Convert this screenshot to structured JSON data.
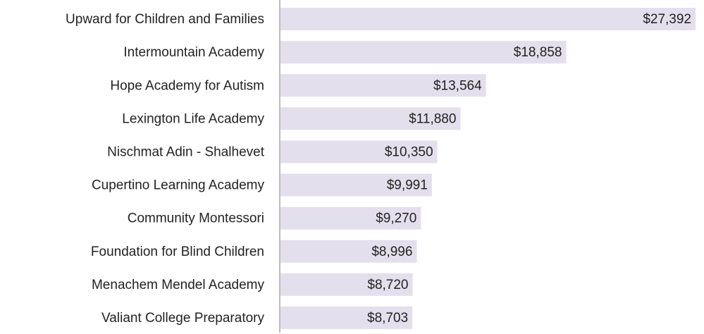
{
  "chart_data": {
    "type": "bar",
    "orientation": "horizontal",
    "categories": [
      "Upward for Children and Families",
      "Intermountain Academy",
      "Hope Academy for Autism",
      "Lexington Life Academy",
      "Nischmat Adin - Shalhevet",
      "Cupertino Learning Academy",
      "Community Montessori",
      "Foundation for Blind Children",
      "Menachem Mendel Academy",
      "Valiant College Preparatory"
    ],
    "values": [
      27392,
      18858,
      13564,
      11880,
      10350,
      9991,
      9270,
      8996,
      8720,
      8703
    ],
    "value_labels": [
      "$27,392",
      "$18,858",
      "$13,564",
      "$11,880",
      "$10,350",
      "$9,991",
      "$9,270",
      "$8,996",
      "$8,720",
      "$8,703"
    ],
    "color": "#e4dfec"
  }
}
